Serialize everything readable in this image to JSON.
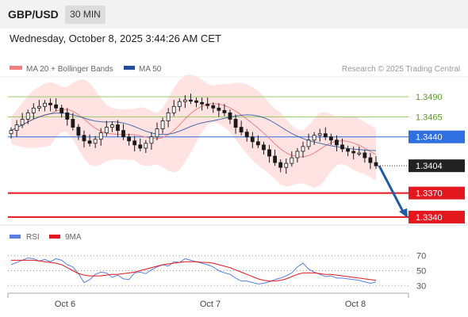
{
  "header": {
    "pair": "GBP/USD",
    "timeframe": "30 MIN"
  },
  "datetime": "Wednesday, October 8, 2025 3:44:26 AM CET",
  "legend": {
    "ma20": "MA 20 + Bollinger Bands",
    "ma50": "MA 50",
    "credit": "Research © 2025 Trading Central"
  },
  "rsi_legend": {
    "rsi": "RSI",
    "ma": "9MA"
  },
  "colors": {
    "ma20": "#f08080",
    "ma50": "#1f4e9c",
    "bollinger": "#ffdcdc",
    "candle": "#1a1a1a",
    "support": "#e3171e",
    "resistance": "#9ccc65",
    "pivot": "#2f6fe0",
    "arrow": "#1f5aa6",
    "rsi": "#5b7fe0",
    "rsi_ma": "#e3171e"
  },
  "chart_data": [
    {
      "type": "line",
      "subtype": "candlestick",
      "title": "GBP/USD 30 MIN",
      "ylim": [
        1.3334,
        1.3502
      ],
      "xaxis_ticks": [
        "Oct 6",
        "Oct 7",
        "Oct 8"
      ],
      "series": [
        {
          "name": "MA 20 + Bollinger Bands"
        },
        {
          "name": "MA 50"
        }
      ],
      "levels": [
        {
          "value": 1.349,
          "label": "1.3490",
          "kind": "resistance"
        },
        {
          "value": 1.3465,
          "label": "1.3465",
          "kind": "resistance"
        },
        {
          "value": 1.344,
          "label": "1.3440",
          "kind": "pivot"
        },
        {
          "value": 1.3404,
          "label": "1.3404",
          "kind": "last"
        },
        {
          "value": 1.337,
          "label": "1.3370",
          "kind": "support"
        },
        {
          "value": 1.334,
          "label": "1.3340",
          "kind": "support"
        }
      ],
      "close": [
        1.3448,
        1.3455,
        1.3462,
        1.347,
        1.3476,
        1.3478,
        1.3482,
        1.348,
        1.3476,
        1.347,
        1.3462,
        1.3452,
        1.3442,
        1.3435,
        1.3432,
        1.3437,
        1.3445,
        1.3452,
        1.3455,
        1.3448,
        1.344,
        1.3435,
        1.343,
        1.3426,
        1.3432,
        1.344,
        1.345,
        1.346,
        1.347,
        1.3478,
        1.3484,
        1.3486,
        1.3485,
        1.3483,
        1.3481,
        1.3479,
        1.3476,
        1.3473,
        1.347,
        1.3462,
        1.3452,
        1.3446,
        1.344,
        1.3434,
        1.343,
        1.3424,
        1.3416,
        1.3408,
        1.3402,
        1.3407,
        1.3414,
        1.3422,
        1.3428,
        1.3436,
        1.3442,
        1.3444,
        1.344,
        1.3436,
        1.343,
        1.3425,
        1.3422,
        1.342,
        1.342,
        1.3414,
        1.3408,
        1.3404
      ]
    },
    {
      "type": "line",
      "title": "RSI",
      "ylim": [
        25,
        75
      ],
      "yticks": [
        70,
        50,
        30
      ],
      "series": [
        {
          "name": "RSI"
        },
        {
          "name": "9MA"
        }
      ],
      "rsi": [
        58,
        61,
        64,
        67,
        66,
        63,
        65,
        62,
        66,
        64,
        58,
        55,
        46,
        34,
        38,
        45,
        48,
        47,
        41,
        44,
        39,
        38,
        47,
        48,
        46,
        51,
        55,
        58,
        56,
        62,
        61,
        66,
        64,
        62,
        60,
        58,
        55,
        50,
        47,
        45,
        40,
        36,
        36,
        34,
        32,
        33,
        35,
        38,
        40,
        43,
        47,
        55,
        60,
        52,
        48,
        45,
        42,
        43,
        40,
        40,
        39,
        38,
        37,
        35,
        33,
        35
      ],
      "ma": [
        64,
        64,
        64,
        64,
        64,
        63,
        62,
        61,
        60,
        58,
        54,
        50,
        46,
        44,
        43,
        43,
        43,
        44,
        45,
        45,
        46,
        47,
        48,
        50,
        52,
        54,
        56,
        58,
        59,
        60,
        61,
        62,
        62,
        62,
        61,
        61,
        60,
        58,
        56,
        54,
        51,
        48,
        45,
        42,
        39,
        37,
        36,
        36,
        37,
        39,
        42,
        45,
        47,
        47,
        47,
        46,
        45,
        45,
        44,
        43,
        42,
        41,
        40,
        39,
        38,
        37
      ]
    }
  ]
}
